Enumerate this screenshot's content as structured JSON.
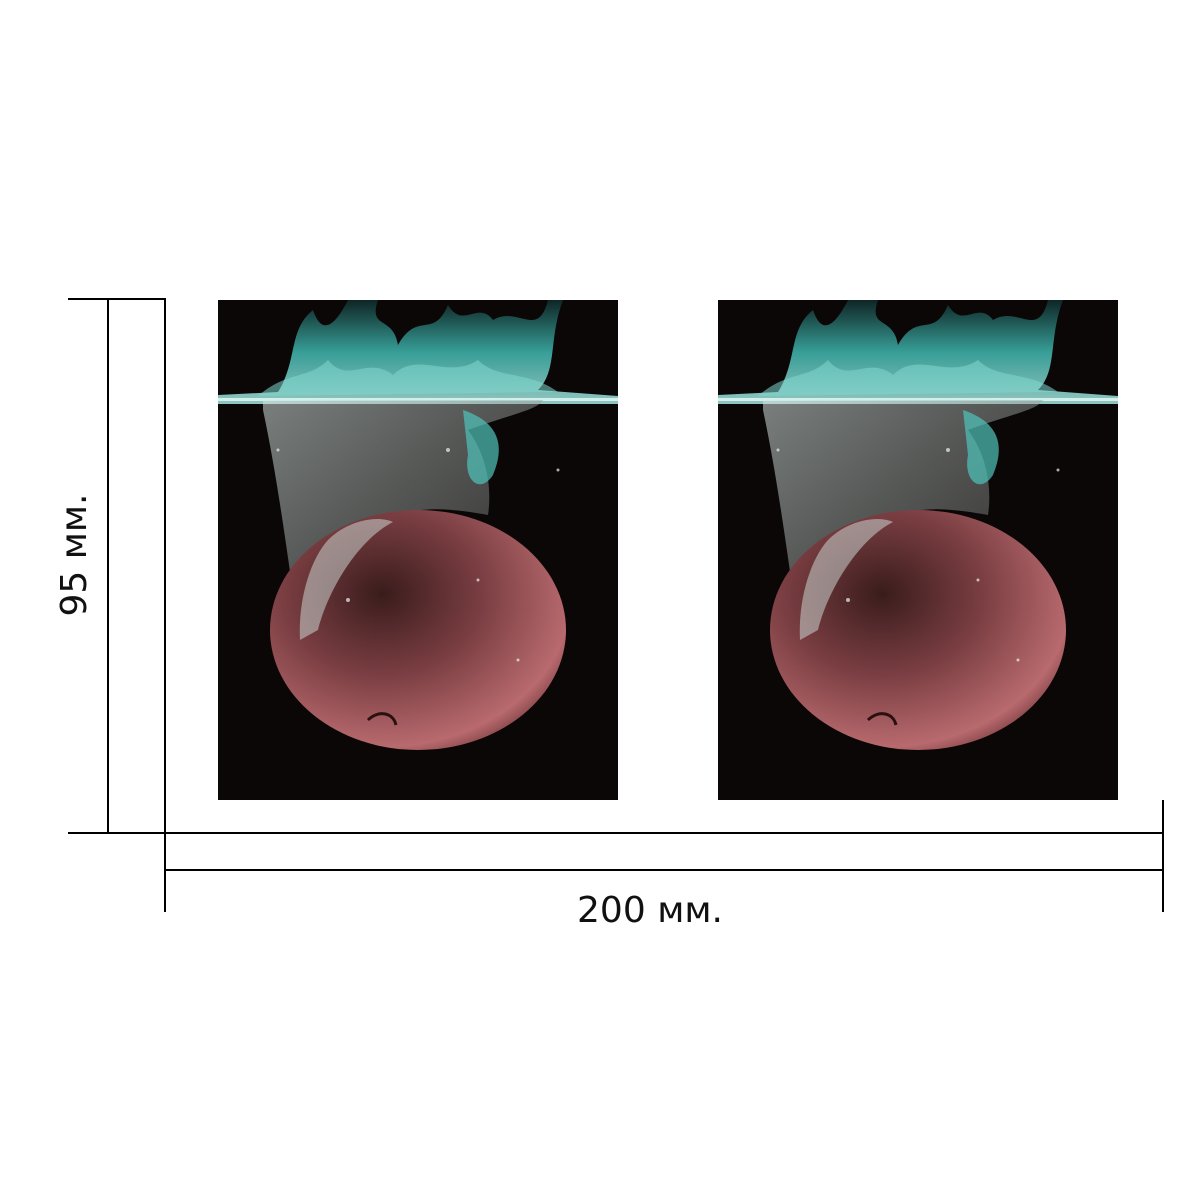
{
  "dimensions": {
    "width_label": "200 мм.",
    "height_label": "95 мм."
  },
  "images": [
    {
      "name": "apple-splash-photo-left",
      "subject": "apple-water-splash",
      "colors": {
        "background": "#0b0707",
        "water": "#3fb8b0",
        "apple": "#b86a6e"
      }
    },
    {
      "name": "apple-splash-photo-right",
      "subject": "apple-water-splash",
      "colors": {
        "background": "#0b0707",
        "water": "#3fb8b0",
        "apple": "#b86a6e"
      }
    }
  ]
}
